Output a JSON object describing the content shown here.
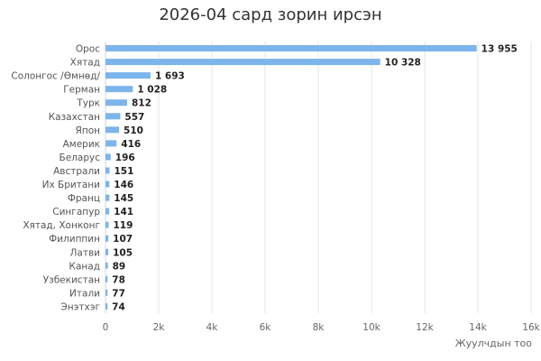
{
  "chart_data": {
    "type": "bar",
    "orientation": "horizontal",
    "title": "2026-04 сард зорин ирсэн",
    "xlabel": "Жуулчдын тоо",
    "ylabel": "",
    "xlim": [
      0,
      16000
    ],
    "ticks": [
      0,
      2000,
      4000,
      6000,
      8000,
      10000,
      12000,
      14000,
      16000
    ],
    "tick_labels": [
      "0",
      "2k",
      "4k",
      "6k",
      "8k",
      "10k",
      "12k",
      "14k",
      "16k"
    ],
    "grid": true,
    "bar_color": "#7cb5ec",
    "categories": [
      "Орос",
      "Хятад",
      "Солонгос /Өмнөд/",
      "Герман",
      "Турк",
      "Казахстан",
      "Япон",
      "Америк",
      "Беларус",
      "Австрали",
      "Их Британи",
      "Франц",
      "Сингапур",
      "Хятад, Хонконг",
      "Филиппин",
      "Латви",
      "Канад",
      "Узбекистан",
      "Итали",
      "Энэтхэг"
    ],
    "values": [
      13955,
      10328,
      1693,
      1028,
      812,
      557,
      510,
      416,
      196,
      151,
      146,
      145,
      141,
      119,
      107,
      105,
      89,
      78,
      77,
      74
    ],
    "value_labels": [
      "13 955",
      "10 328",
      "1 693",
      "1 028",
      "812",
      "557",
      "510",
      "416",
      "196",
      "151",
      "146",
      "145",
      "141",
      "119",
      "107",
      "105",
      "89",
      "78",
      "77",
      "74"
    ]
  }
}
